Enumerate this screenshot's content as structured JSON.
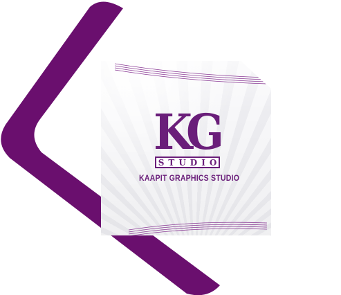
{
  "logo": {
    "monogram_k": "K",
    "monogram_g": "G",
    "studio": "STUDIO",
    "tagline": "KAAPIT GRAPHICS STUDIO"
  },
  "colors": {
    "brand_purple": "#6a1e7a",
    "card_bg": "#f2f2f5",
    "page_bg": "#ffffff"
  }
}
